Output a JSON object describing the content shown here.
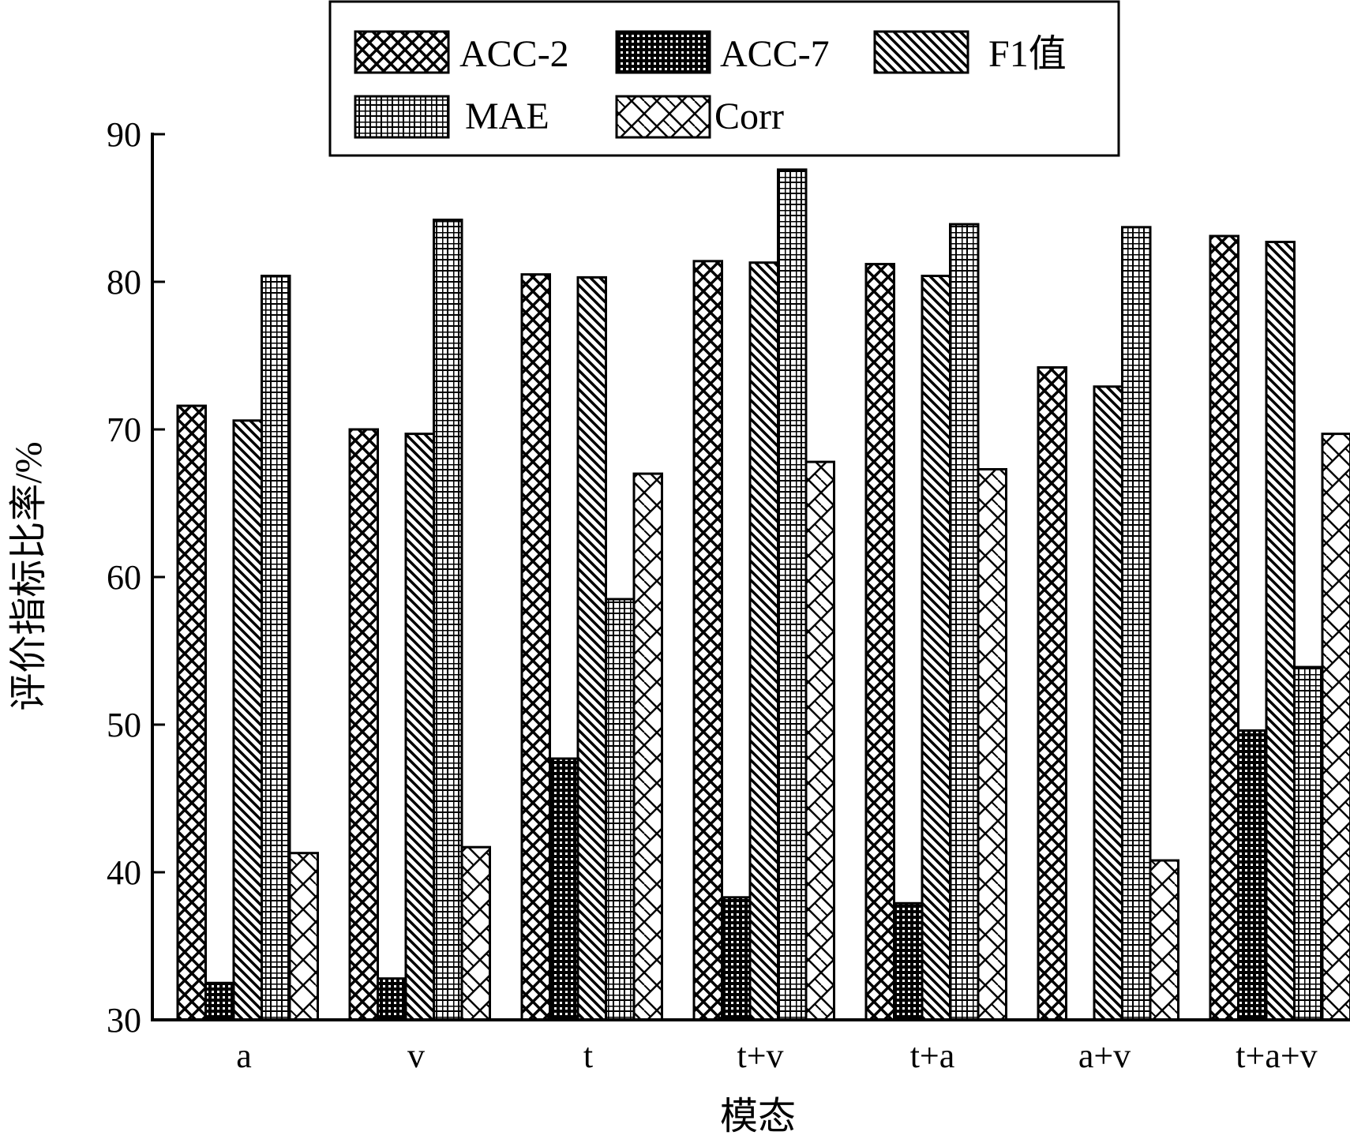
{
  "chart_data": {
    "type": "bar",
    "title": "",
    "xlabel": "模态",
    "ylabel": "评价指标比率/%",
    "ylim": [
      30,
      90
    ],
    "yticks": [
      30,
      40,
      50,
      60,
      70,
      80,
      90
    ],
    "grid": false,
    "legend_position": "top",
    "categories": [
      "a",
      "v",
      "t",
      "t+v",
      "t+a",
      "a+v",
      "t+a+v"
    ],
    "series": [
      {
        "name": "ACC-2",
        "pattern": "crosshatch",
        "values": [
          71.6,
          70.0,
          80.5,
          81.4,
          81.2,
          74.2,
          83.1
        ]
      },
      {
        "name": "ACC-7",
        "pattern": "dense-grid",
        "values": [
          32.5,
          32.8,
          47.7,
          38.3,
          37.9,
          30.0,
          49.6
        ]
      },
      {
        "name": "F1值",
        "pattern": "diagonal-back",
        "values": [
          70.6,
          69.7,
          80.3,
          81.3,
          80.4,
          72.9,
          82.7
        ]
      },
      {
        "name": "MAE",
        "pattern": "grid",
        "values": [
          80.4,
          84.2,
          58.5,
          87.6,
          83.9,
          83.7,
          53.9
        ]
      },
      {
        "name": "Corr",
        "pattern": "zigzag",
        "values": [
          41.3,
          41.7,
          67.0,
          67.8,
          67.3,
          40.8,
          69.7
        ]
      }
    ]
  }
}
